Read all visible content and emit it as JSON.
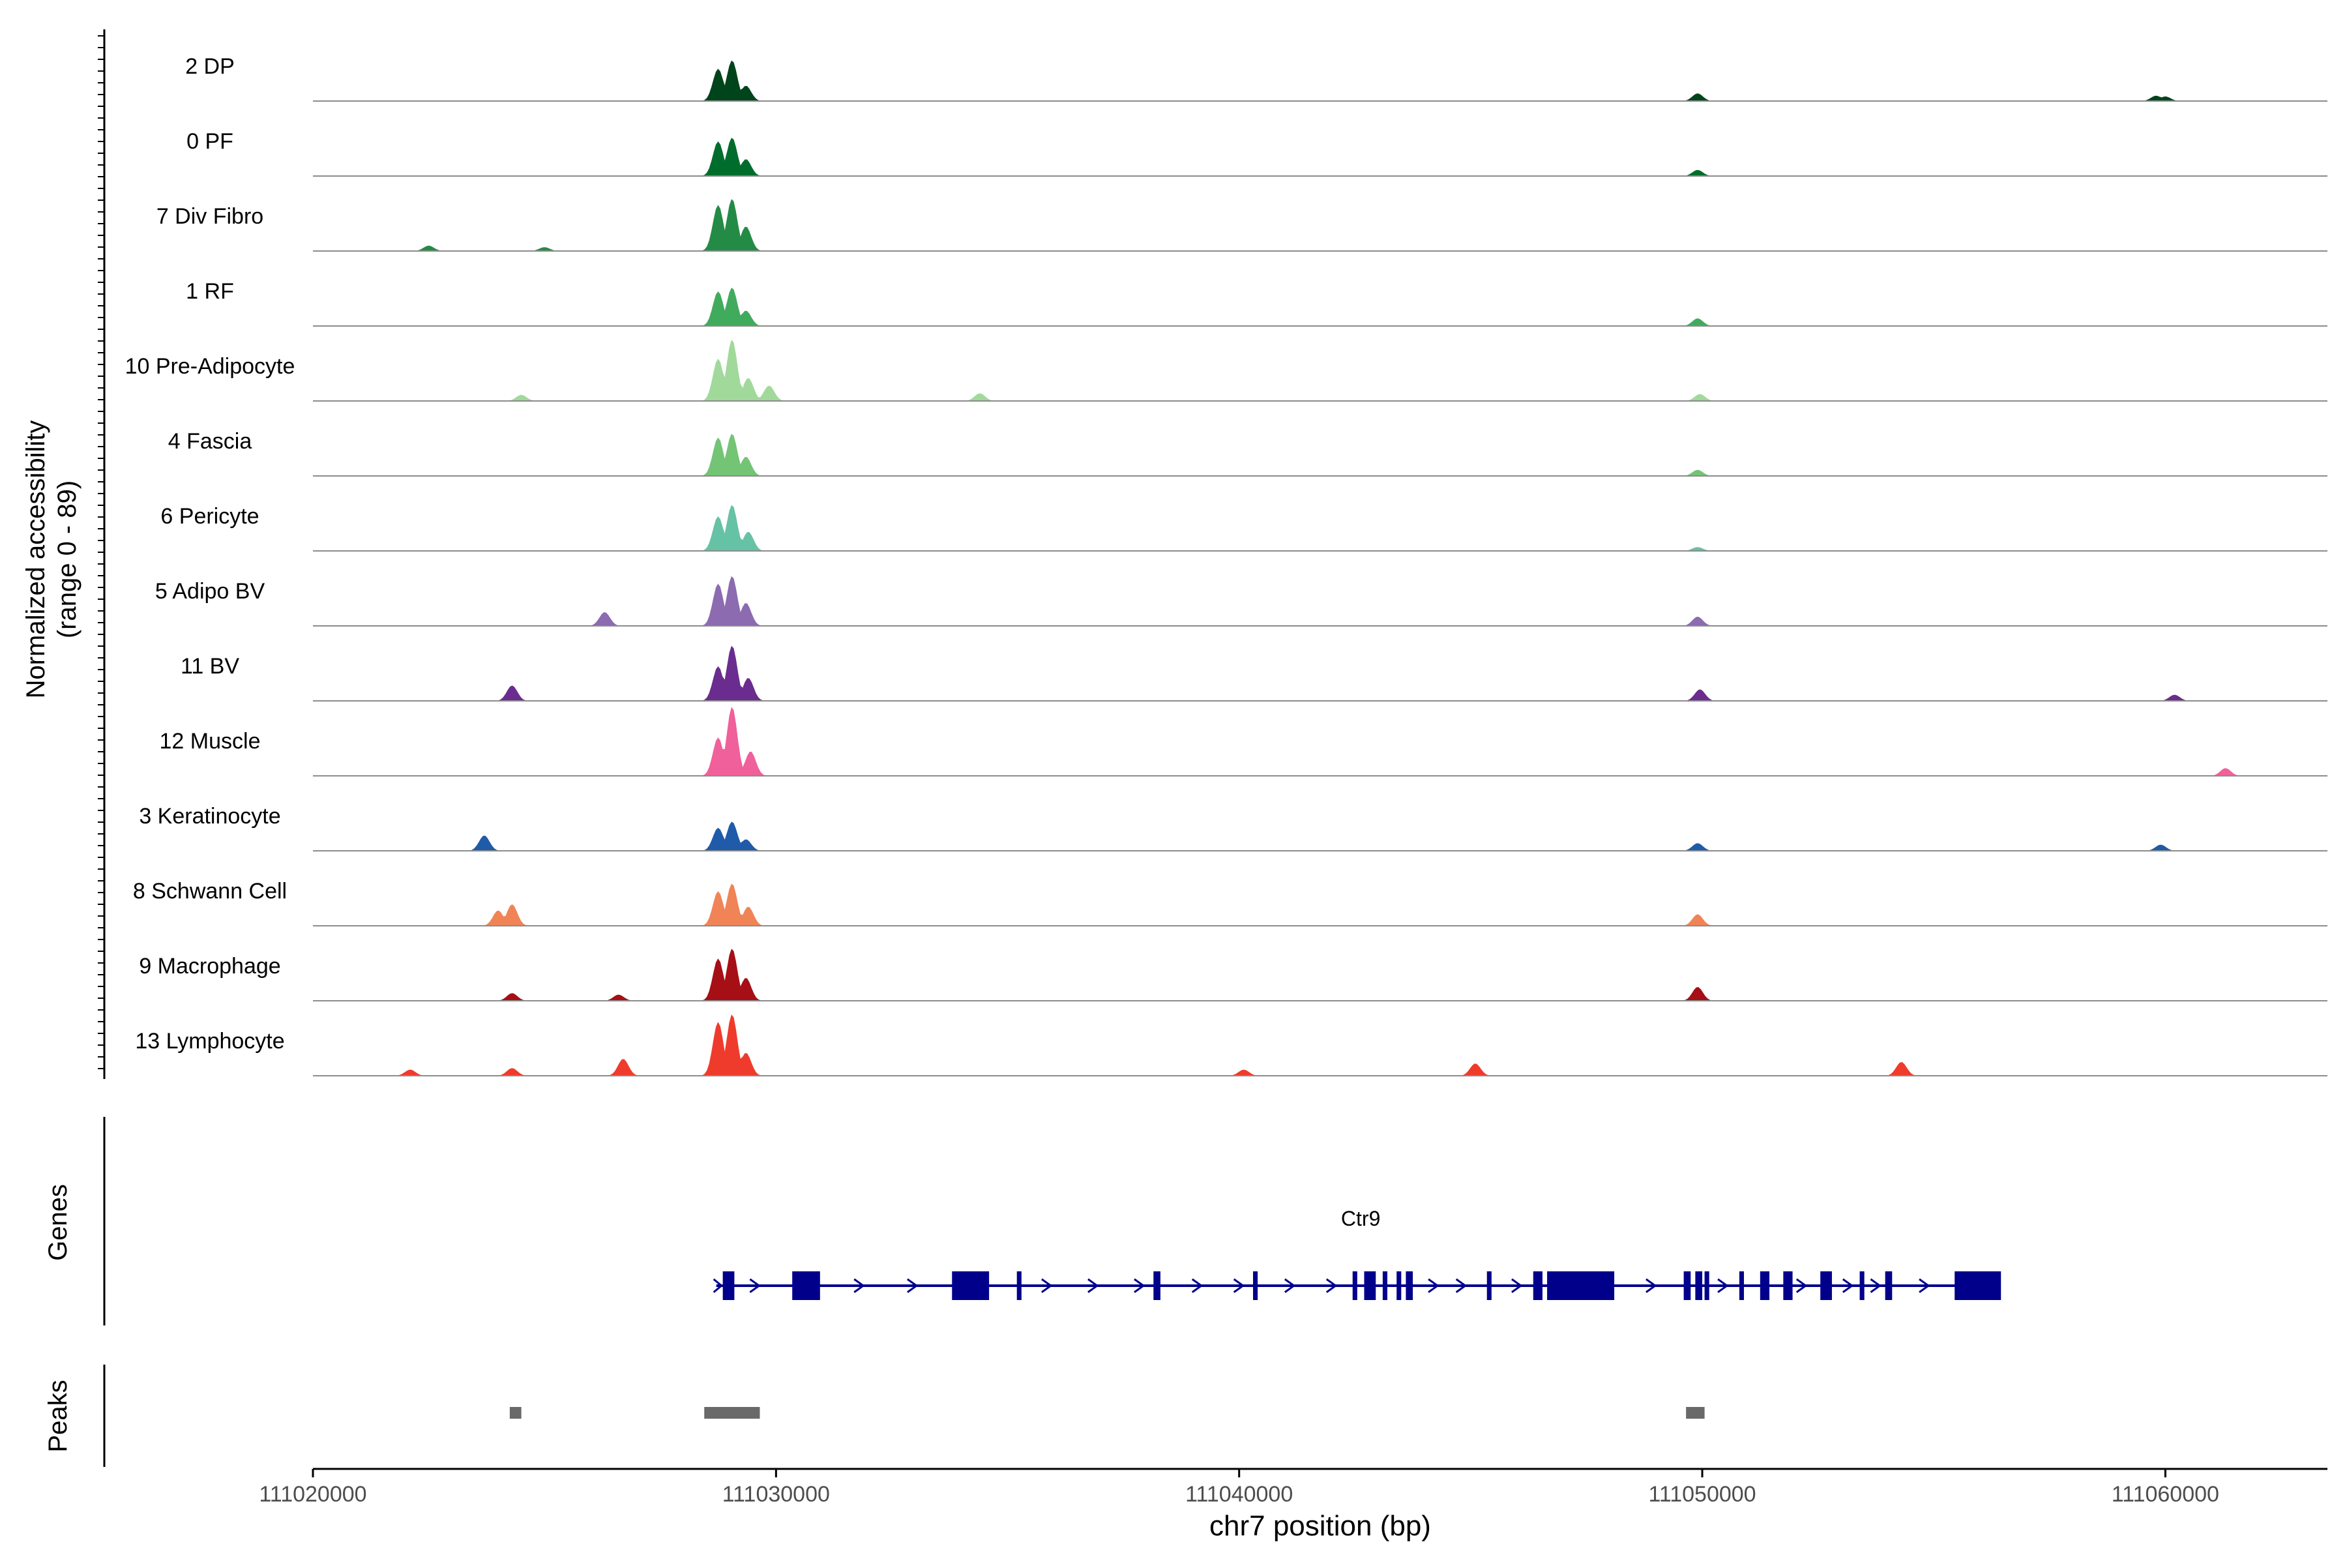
{
  "chart_data": {
    "type": "area",
    "title": "",
    "ylabel_line1": "Normalized accessibility",
    "ylabel_line2": "(range 0 - 89)",
    "xlabel": "chr7 position (bp)",
    "xlim": [
      111020000,
      111063500
    ],
    "xticks": [
      "111020000",
      "111030000",
      "111040000",
      "111050000",
      "111060000"
    ],
    "xtick_values": [
      111020000,
      111030000,
      111040000,
      111050000,
      111060000
    ],
    "genes_label": "Genes",
    "peaks_label": "Peaks",
    "tracks": [
      {
        "name": "2 DP",
        "color": "#00441b",
        "peaks": [
          [
            111028750,
            0.42
          ],
          [
            111029050,
            0.53
          ],
          [
            111029350,
            0.2
          ],
          [
            111049900,
            0.1
          ],
          [
            111059800,
            0.07
          ],
          [
            111060000,
            0.06
          ]
        ]
      },
      {
        "name": "0 PF",
        "color": "#006d2c",
        "peaks": [
          [
            111028750,
            0.45
          ],
          [
            111029050,
            0.5
          ],
          [
            111029350,
            0.22
          ],
          [
            111049900,
            0.08
          ]
        ]
      },
      {
        "name": "7 Div Fibro",
        "color": "#238b45",
        "peaks": [
          [
            111028750,
            0.6
          ],
          [
            111029050,
            0.68
          ],
          [
            111029350,
            0.32
          ],
          [
            111022500,
            0.07
          ],
          [
            111025000,
            0.05
          ]
        ]
      },
      {
        "name": "1 RF",
        "color": "#41ab5d",
        "peaks": [
          [
            111028750,
            0.45
          ],
          [
            111029050,
            0.5
          ],
          [
            111029350,
            0.2
          ],
          [
            111049900,
            0.1
          ]
        ]
      },
      {
        "name": "10 Pre-Adipocyte",
        "color": "#a1d99b",
        "peaks": [
          [
            111028750,
            0.55
          ],
          [
            111029050,
            0.8
          ],
          [
            111029400,
            0.3
          ],
          [
            111029850,
            0.2
          ],
          [
            111024500,
            0.08
          ],
          [
            111034400,
            0.1
          ],
          [
            111049950,
            0.09
          ]
        ]
      },
      {
        "name": "4 Fascia",
        "color": "#74c476",
        "peaks": [
          [
            111028750,
            0.5
          ],
          [
            111029050,
            0.55
          ],
          [
            111029350,
            0.25
          ],
          [
            111049900,
            0.08
          ]
        ]
      },
      {
        "name": "6 Pericyte",
        "color": "#66c2a4",
        "peaks": [
          [
            111028750,
            0.45
          ],
          [
            111029050,
            0.6
          ],
          [
            111029400,
            0.25
          ],
          [
            111049900,
            0.05
          ]
        ]
      },
      {
        "name": "5 Adipo BV",
        "color": "#8c6bb1",
        "peaks": [
          [
            111028750,
            0.55
          ],
          [
            111029050,
            0.65
          ],
          [
            111029350,
            0.3
          ],
          [
            111026300,
            0.18
          ],
          [
            111049900,
            0.12
          ]
        ]
      },
      {
        "name": "11 BV",
        "color": "#6a2c8f",
        "peaks": [
          [
            111028750,
            0.45
          ],
          [
            111029050,
            0.72
          ],
          [
            111029400,
            0.3
          ],
          [
            111024300,
            0.2
          ],
          [
            111049950,
            0.15
          ],
          [
            111060200,
            0.08
          ]
        ]
      },
      {
        "name": "12 Muscle",
        "color": "#f0609a",
        "peaks": [
          [
            111028750,
            0.5
          ],
          [
            111029050,
            0.9
          ],
          [
            111029450,
            0.32
          ],
          [
            111061300,
            0.1
          ]
        ]
      },
      {
        "name": "3 Keratinocyte",
        "color": "#1f5ba8",
        "peaks": [
          [
            111023700,
            0.2
          ],
          [
            111028750,
            0.3
          ],
          [
            111029050,
            0.38
          ],
          [
            111029350,
            0.15
          ],
          [
            111049900,
            0.1
          ],
          [
            111059900,
            0.08
          ]
        ]
      },
      {
        "name": "8 Schwann Cell",
        "color": "#f08456",
        "peaks": [
          [
            111024000,
            0.2
          ],
          [
            111024300,
            0.28
          ],
          [
            111028750,
            0.45
          ],
          [
            111029050,
            0.55
          ],
          [
            111029400,
            0.25
          ],
          [
            111049900,
            0.15
          ]
        ]
      },
      {
        "name": "9 Macrophage",
        "color": "#a50f15",
        "peaks": [
          [
            111028750,
            0.55
          ],
          [
            111029050,
            0.68
          ],
          [
            111029350,
            0.3
          ],
          [
            111024300,
            0.1
          ],
          [
            111026600,
            0.08
          ],
          [
            111049900,
            0.18
          ]
        ]
      },
      {
        "name": "13 Lymphocyte",
        "color": "#ef3b2c",
        "peaks": [
          [
            111028750,
            0.7
          ],
          [
            111029050,
            0.8
          ],
          [
            111029350,
            0.3
          ],
          [
            111026700,
            0.22
          ],
          [
            111045100,
            0.16
          ],
          [
            111054300,
            0.18
          ],
          [
            111022100,
            0.08
          ],
          [
            111024300,
            0.1
          ],
          [
            111040100,
            0.08
          ]
        ]
      }
    ],
    "gene": {
      "name": "Ctr9",
      "color": "#00008b",
      "start": 111028850,
      "end": 111056400,
      "exons": [
        [
          111028850,
          111029100
        ],
        [
          111030350,
          111030950
        ],
        [
          111033800,
          111034600
        ],
        [
          111035200,
          111035300
        ],
        [
          111038150,
          111038300
        ],
        [
          111040300,
          111040400
        ],
        [
          111042450,
          111042550
        ],
        [
          111042700,
          111042950
        ],
        [
          111043100,
          111043200
        ],
        [
          111043400,
          111043500
        ],
        [
          111043600,
          111043750
        ],
        [
          111045350,
          111045450
        ],
        [
          111046350,
          111046550
        ],
        [
          111046650,
          111048100
        ],
        [
          111049600,
          111049750
        ],
        [
          111049850,
          111050000
        ],
        [
          111050050,
          111050150
        ],
        [
          111050800,
          111050900
        ],
        [
          111051250,
          111051450
        ],
        [
          111051750,
          111051950
        ],
        [
          111052550,
          111052800
        ],
        [
          111053400,
          111053500
        ],
        [
          111053950,
          111054100
        ],
        [
          111055450,
          111056450
        ]
      ],
      "arrows": [
        111029550,
        111031800,
        111032950,
        111035850,
        111036850,
        111037850,
        111039100,
        111040000,
        111041100,
        111042000,
        111044200,
        111044800,
        111046000,
        111048900,
        111050450,
        111052150,
        111053150,
        111053750,
        111054800
      ]
    },
    "peaks_track": {
      "color": "#696969",
      "regions": [
        [
          111024250,
          111024500
        ],
        [
          111028450,
          111029650
        ],
        [
          111049650,
          111050050
        ]
      ]
    }
  }
}
